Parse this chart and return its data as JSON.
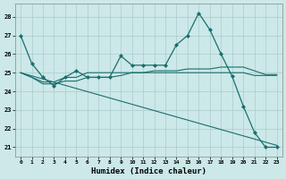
{
  "xlabel": "Humidex (Indice chaleur)",
  "xlim": [
    -0.5,
    23.5
  ],
  "ylim": [
    20.5,
    28.7
  ],
  "yticks": [
    21,
    22,
    23,
    24,
    25,
    26,
    27,
    28
  ],
  "xticks": [
    0,
    1,
    2,
    3,
    4,
    5,
    6,
    7,
    8,
    9,
    10,
    11,
    12,
    13,
    14,
    15,
    16,
    17,
    18,
    19,
    20,
    21,
    22,
    23
  ],
  "bg_color": "#cce8e8",
  "grid_color": "#aacccc",
  "line_color": "#1a6e6e",
  "series": {
    "line1": {
      "x": [
        0,
        1,
        2,
        3,
        4,
        5,
        6,
        7,
        8,
        9,
        10,
        11,
        12,
        13,
        14,
        15,
        16,
        17,
        18,
        19,
        20,
        21,
        22,
        23
      ],
      "y": [
        27.0,
        25.5,
        24.75,
        24.3,
        24.75,
        25.1,
        24.75,
        24.75,
        24.75,
        25.9,
        25.4,
        25.4,
        25.4,
        25.4,
        26.5,
        27.0,
        28.2,
        27.3,
        26.0,
        24.8,
        23.2,
        21.8,
        21.0,
        21.0
      ]
    },
    "line2": {
      "x": [
        0,
        1,
        2,
        3,
        4,
        5,
        6,
        7,
        8,
        9,
        10,
        11,
        12,
        13,
        14,
        15,
        16,
        17,
        18,
        19,
        20,
        21,
        22,
        23
      ],
      "y": [
        25.0,
        24.75,
        24.5,
        24.5,
        24.75,
        24.75,
        25.0,
        25.0,
        25.0,
        25.0,
        25.0,
        25.0,
        25.0,
        25.0,
        25.0,
        25.0,
        25.0,
        25.0,
        25.0,
        25.0,
        25.0,
        24.85,
        24.85,
        24.85
      ]
    },
    "line3": {
      "x": [
        0,
        1,
        2,
        3,
        4,
        5,
        6,
        7,
        8,
        9,
        10,
        11,
        12,
        13,
        14,
        15,
        16,
        17,
        18,
        19,
        20,
        21,
        22,
        23
      ],
      "y": [
        25.0,
        24.75,
        24.4,
        24.4,
        24.55,
        24.55,
        24.75,
        24.75,
        24.75,
        24.85,
        25.0,
        25.0,
        25.1,
        25.1,
        25.1,
        25.2,
        25.2,
        25.2,
        25.3,
        25.3,
        25.3,
        25.1,
        24.9,
        24.9
      ]
    },
    "line4": {
      "x": [
        0,
        23
      ],
      "y": [
        25.0,
        21.1
      ]
    }
  }
}
